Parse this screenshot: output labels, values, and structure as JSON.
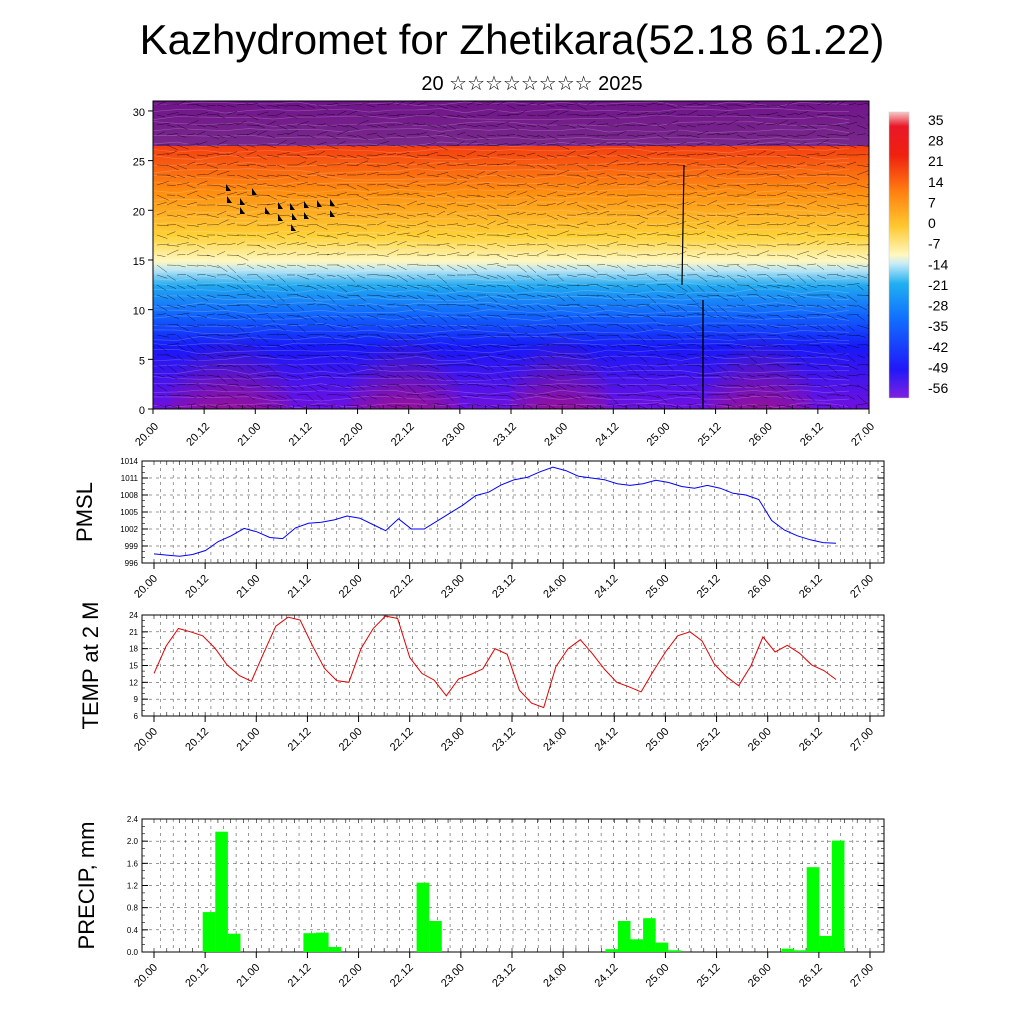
{
  "header": {
    "title": "Kazhydromet for Zhetikara(52.18 61.22)",
    "subtitle": "20 ☆☆☆☆☆☆☆☆ 2025"
  },
  "time_ticks": [
    "20.00",
    "20.12",
    "21.00",
    "21.12",
    "22.00",
    "22.12",
    "23.00",
    "23.12",
    "24.00",
    "24.12",
    "25.00",
    "25.12",
    "26.00",
    "26.12",
    "27.00"
  ],
  "chart_data": [
    {
      "id": "temperature-cross-section",
      "type": "heatmap",
      "x_ticks": [
        "20.00",
        "20.12",
        "21.00",
        "21.12",
        "22.00",
        "22.12",
        "23.00",
        "23.12",
        "24.00",
        "24.12",
        "25.00",
        "25.12",
        "26.00",
        "26.12",
        "27.00"
      ],
      "y_ticks": [
        "0",
        "5",
        "10",
        "15",
        "20",
        "25",
        "30"
      ],
      "ylim": [
        0,
        31
      ],
      "colorbar_labels": [
        "35",
        "28",
        "21",
        "14",
        "7",
        "0",
        "-7",
        "-14",
        "-21",
        "-28",
        "-35",
        "-42",
        "-49",
        "-56"
      ],
      "colorscale": [
        "#8020d8",
        "#2010f0",
        "#1050ff",
        "#10a8f0",
        "#a8e0f8",
        "#fff8c0",
        "#ffd040",
        "#ff8010",
        "#f03010",
        "#e01010",
        "#f8c0c0"
      ]
    },
    {
      "id": "pmsl",
      "type": "line",
      "ylabel": "PMSL",
      "ylim": [
        996,
        1014
      ],
      "y_ticks": [
        "996",
        "999",
        "1002",
        "1005",
        "1008",
        "1011",
        "1014"
      ],
      "color": "#0000ff",
      "x_ticks": [
        "20.00",
        "20.12",
        "21.00",
        "21.12",
        "22.00",
        "22.12",
        "23.00",
        "23.12",
        "24.00",
        "24.12",
        "25.00",
        "25.12",
        "26.00",
        "26.12",
        "27.00"
      ],
      "values": [
        997.6,
        997.4,
        997.2,
        997.5,
        998.2,
        999.8,
        1000.8,
        1002.1,
        1001.5,
        1000.5,
        1000.3,
        1002.2,
        1003.0,
        1003.2,
        1003.6,
        1004.3,
        1003.9,
        1002.8,
        1001.7,
        1003.8,
        1002.0,
        1002.0,
        1003.4,
        1004.8,
        1006.2,
        1007.9,
        1008.5,
        1009.8,
        1010.7,
        1011.1,
        1012.1,
        1012.9,
        1012.3,
        1011.3,
        1011.0,
        1010.7,
        1010.0,
        1009.7,
        1010.0,
        1010.6,
        1010.2,
        1009.5,
        1009.2,
        1009.7,
        1009.2,
        1008.3,
        1008.0,
        1007.2,
        1003.5,
        1001.8,
        1000.8,
        1000.1,
        999.6,
        999.5
      ]
    },
    {
      "id": "temp-2m",
      "type": "line",
      "ylabel": "TEMP at 2 M",
      "ylim": [
        6,
        24
      ],
      "y_ticks": [
        "6",
        "9",
        "12",
        "15",
        "18",
        "21",
        "24"
      ],
      "color": "#e00000",
      "x_ticks": [
        "20.00",
        "20.12",
        "21.00",
        "21.12",
        "22.00",
        "22.12",
        "23.00",
        "23.12",
        "24.00",
        "24.12",
        "25.00",
        "25.12",
        "26.00",
        "26.12",
        "27.00"
      ],
      "values": [
        13.6,
        18.5,
        21.6,
        21.0,
        20.3,
        18.1,
        15.1,
        13.2,
        12.2,
        17.2,
        22.0,
        23.6,
        23.1,
        18.6,
        14.5,
        12.3,
        12.0,
        18.0,
        21.6,
        23.8,
        23.4,
        16.4,
        13.6,
        12.4,
        9.6,
        12.6,
        13.4,
        14.4,
        18.0,
        17.0,
        10.6,
        8.3,
        7.5,
        14.8,
        18.0,
        19.6,
        17.1,
        14.3,
        12.0,
        11.2,
        10.3,
        14.0,
        17.4,
        20.3,
        21.0,
        19.4,
        15.3,
        13.0,
        11.4,
        14.9,
        20.1,
        17.4,
        18.6,
        17.2,
        15.1,
        14.1,
        12.5
      ]
    },
    {
      "id": "precip",
      "type": "bar",
      "ylabel": "PRECIP, mm",
      "ylim": [
        0,
        2.4
      ],
      "y_ticks": [
        "0.0",
        "0.4",
        "0.8",
        "1.2",
        "1.6",
        "2.0",
        "2.4"
      ],
      "color": "#00ff00",
      "x_ticks": [
        "20.00",
        "20.12",
        "21.00",
        "21.12",
        "22.00",
        "22.12",
        "23.00",
        "23.12",
        "24.00",
        "24.12",
        "25.00",
        "25.12",
        "26.00",
        "26.12",
        "27.00"
      ],
      "values": [
        0,
        0,
        0,
        0.72,
        2.17,
        0.33,
        0,
        0,
        0,
        0,
        0,
        0.34,
        0.35,
        0.09,
        0,
        0,
        0,
        0,
        0,
        0,
        1.25,
        0.56,
        0,
        0,
        0,
        0,
        0,
        0,
        0,
        0,
        0,
        0,
        0,
        0,
        0,
        0.05,
        0.56,
        0.23,
        0.61,
        0.17,
        0.03,
        0,
        0,
        0,
        0,
        0,
        0,
        0,
        0,
        0.06,
        0.03,
        1.53,
        0.29,
        2.01,
        0
      ]
    }
  ]
}
